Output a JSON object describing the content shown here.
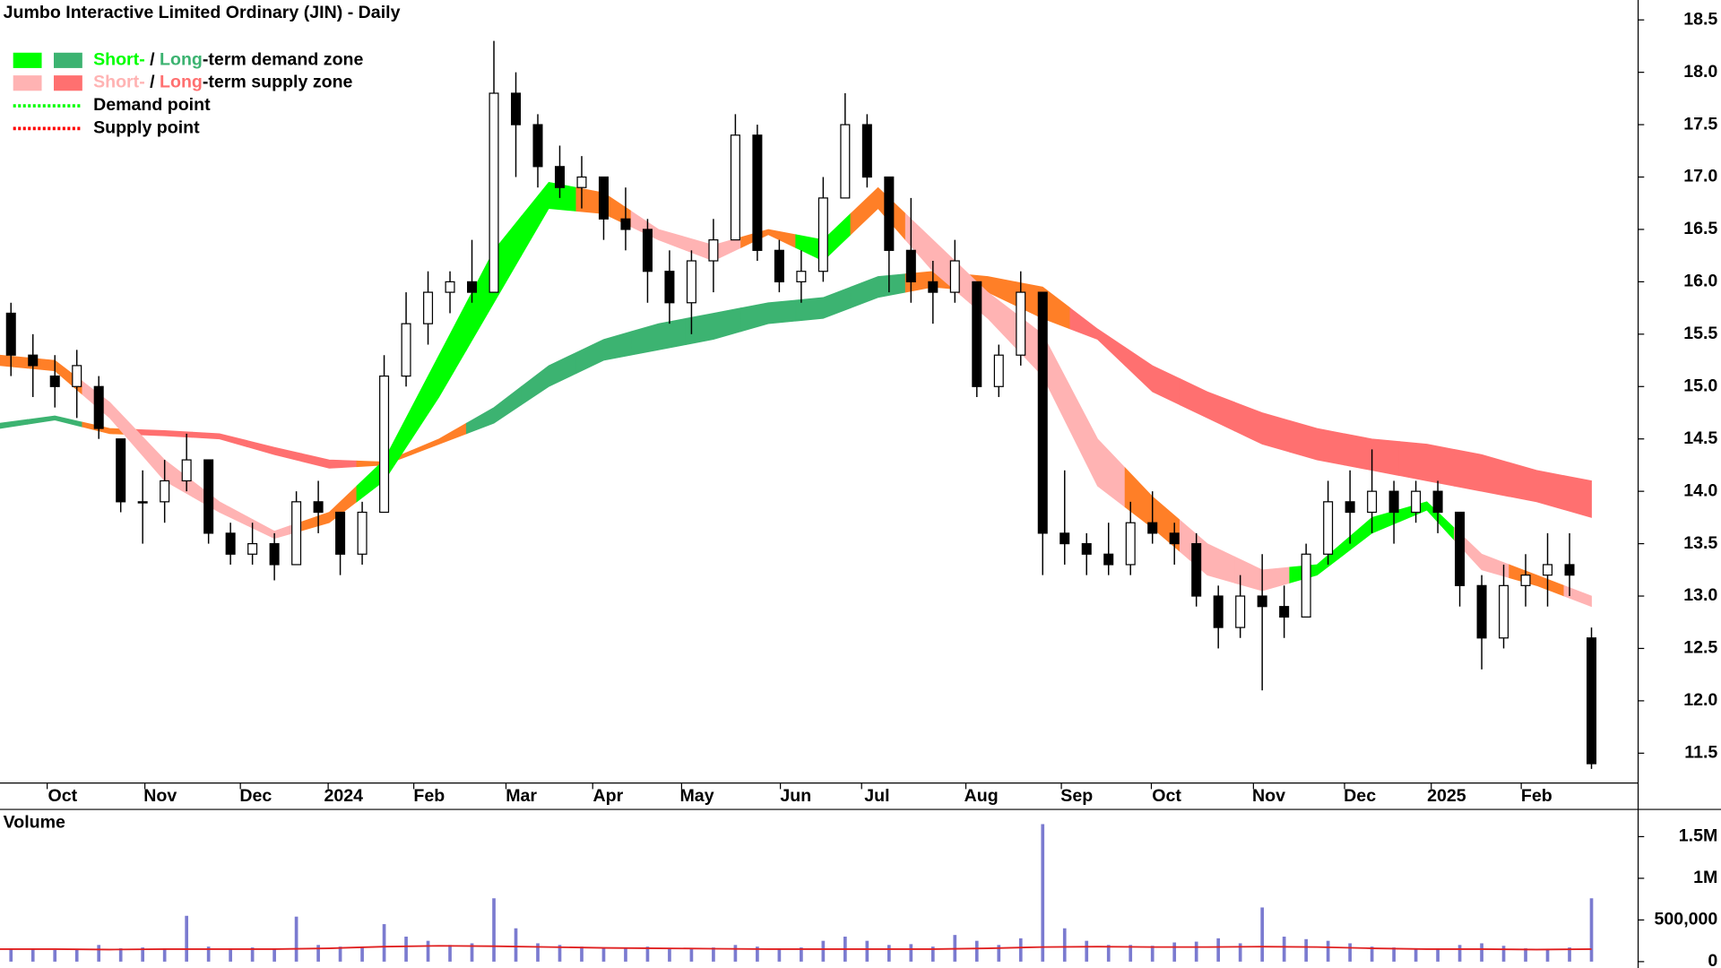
{
  "chart_data": [
    {
      "type": "candlestick",
      "title": "Jumbo Interactive Limited Ordinary (JIN) - Daily",
      "x": [
        0.5,
        1.5,
        2.5,
        3.5,
        4.5,
        5.5,
        6.5,
        7.5,
        8.5,
        9.5,
        10.5,
        11.5,
        12.5,
        13.5,
        14.5,
        15.5,
        16.5,
        17.5,
        18.5,
        19.5,
        20.5,
        21.5,
        22.5,
        23.5,
        24.5,
        25.5,
        26.5,
        27.5,
        28.5,
        29.5,
        30.5,
        31.5,
        32.5,
        33.5,
        34.5,
        35.5,
        36.5,
        37.5,
        38.5,
        39.5,
        40.5,
        41.5,
        42.5,
        43.5,
        44.5,
        45.5,
        46.5,
        47.5,
        48.5,
        49.5,
        50.5,
        51.5,
        52.5,
        53.5,
        54.5,
        55.5,
        56.5,
        57.5,
        58.5,
        59.5,
        60.5,
        61.5,
        62.5,
        63.5,
        64.5,
        65.5,
        66.5,
        67.5,
        68.5,
        69.5,
        70.5,
        71.5,
        72.5
      ],
      "open": [
        15.7,
        15.3,
        15.1,
        15.0,
        15.0,
        14.5,
        13.9,
        13.9,
        14.1,
        14.3,
        13.6,
        13.4,
        13.5,
        13.3,
        13.9,
        13.8,
        13.4,
        13.8,
        15.1,
        15.6,
        15.9,
        16.0,
        15.9,
        17.8,
        17.5,
        17.1,
        16.9,
        17.0,
        16.6,
        16.5,
        16.1,
        15.8,
        16.2,
        16.4,
        17.4,
        16.3,
        16.0,
        16.1,
        16.8,
        17.5,
        17.0,
        16.3,
        16.0,
        15.9,
        16.0,
        15.0,
        15.3,
        15.9,
        13.6,
        13.5,
        13.4,
        13.3,
        13.7,
        13.6,
        13.5,
        13.0,
        12.7,
        13.0,
        12.9,
        12.8,
        13.4,
        13.9,
        13.8,
        14.0,
        13.8,
        14.0,
        13.8,
        13.1,
        12.6,
        13.1,
        13.2,
        13.3,
        12.6
      ],
      "high": [
        15.8,
        15.5,
        15.3,
        15.35,
        15.1,
        14.5,
        14.2,
        14.3,
        14.55,
        14.3,
        13.7,
        13.7,
        13.6,
        14.0,
        14.1,
        13.8,
        13.9,
        15.3,
        15.9,
        16.1,
        16.1,
        16.4,
        18.3,
        18.0,
        17.6,
        17.3,
        17.2,
        17.0,
        16.9,
        16.6,
        16.3,
        16.3,
        16.6,
        17.6,
        17.5,
        16.4,
        16.3,
        17.0,
        17.8,
        17.6,
        17.0,
        16.8,
        16.2,
        16.4,
        16.0,
        15.4,
        16.1,
        15.9,
        14.2,
        13.6,
        13.7,
        13.9,
        14.0,
        13.7,
        13.6,
        13.1,
        13.2,
        13.4,
        13.1,
        13.5,
        14.1,
        14.2,
        14.4,
        14.1,
        14.1,
        14.1,
        13.8,
        13.2,
        13.3,
        13.4,
        13.6,
        13.6,
        12.7
      ],
      "low": [
        15.1,
        14.9,
        14.8,
        14.7,
        14.5,
        13.8,
        13.5,
        13.7,
        14.0,
        13.5,
        13.3,
        13.3,
        13.15,
        13.3,
        13.6,
        13.2,
        13.3,
        13.8,
        15.0,
        15.4,
        15.7,
        15.8,
        15.9,
        17.0,
        16.9,
        16.8,
        16.7,
        16.4,
        16.3,
        15.8,
        15.6,
        15.5,
        15.9,
        16.4,
        16.2,
        15.9,
        15.8,
        16.0,
        16.8,
        16.9,
        15.9,
        15.8,
        15.6,
        15.8,
        14.9,
        14.9,
        15.2,
        13.2,
        13.3,
        13.2,
        13.2,
        13.2,
        13.5,
        13.3,
        12.9,
        12.5,
        12.6,
        12.1,
        12.6,
        12.8,
        13.3,
        13.5,
        13.6,
        13.5,
        13.7,
        13.6,
        12.9,
        12.3,
        12.5,
        12.9,
        12.9,
        13.0,
        11.35
      ],
      "close": [
        15.3,
        15.2,
        15.0,
        15.2,
        14.6,
        13.9,
        13.9,
        14.1,
        14.3,
        13.6,
        13.4,
        13.5,
        13.3,
        13.9,
        13.8,
        13.4,
        13.8,
        15.1,
        15.6,
        15.9,
        16.0,
        15.9,
        17.8,
        17.5,
        17.1,
        16.9,
        17.0,
        16.6,
        16.5,
        16.1,
        15.8,
        16.2,
        16.4,
        17.4,
        16.3,
        16.0,
        16.1,
        16.8,
        17.5,
        17.0,
        16.3,
        16.0,
        15.9,
        16.2,
        15.0,
        15.3,
        15.9,
        13.6,
        13.5,
        13.4,
        13.3,
        13.7,
        13.6,
        13.5,
        13.0,
        12.7,
        13.0,
        12.9,
        12.8,
        13.4,
        13.9,
        13.8,
        14.0,
        13.8,
        14.0,
        13.8,
        13.1,
        12.6,
        13.1,
        13.2,
        13.3,
        13.2,
        11.4
      ],
      "up_color": "#ffffff",
      "down_color": "#000000",
      "zone_x": [
        0,
        2.5,
        5,
        7.5,
        10,
        12.5,
        15,
        17.5,
        20,
        22.5,
        25,
        27.5,
        30,
        32.5,
        35,
        37.5,
        40,
        42.5,
        45,
        47.5,
        50,
        52.5,
        55,
        57.5,
        60,
        62.5,
        65,
        67.5,
        70,
        72.5
      ],
      "zone_colors": {
        "short": {
          "demand": "#00ff00",
          "supply": "#ffb3b3",
          "transition": "#ff7f27"
        },
        "long": {
          "demand": "#3cb371",
          "supply": "#ff7070",
          "transition": "#ff7f27"
        }
      },
      "zones": [
        {
          "band": "long",
          "upper": [
            14.65,
            14.72,
            14.6,
            14.58,
            14.55,
            14.42,
            14.3,
            14.28,
            14.5,
            14.8,
            15.2,
            15.45,
            15.6,
            15.7,
            15.8,
            15.85,
            16.05,
            16.1,
            16.05,
            15.95,
            15.55,
            15.2,
            14.95,
            14.75,
            14.6,
            14.5,
            14.45,
            14.35,
            14.2,
            14.1
          ],
          "lower": [
            14.6,
            14.68,
            14.55,
            14.53,
            14.5,
            14.35,
            14.22,
            14.25,
            14.45,
            14.65,
            15.0,
            15.25,
            15.35,
            15.45,
            15.6,
            15.65,
            15.85,
            15.95,
            15.9,
            15.65,
            15.45,
            14.95,
            14.7,
            14.45,
            14.3,
            14.2,
            14.1,
            14.0,
            13.9,
            13.75
          ],
          "state": [
            "demand",
            "demand",
            "transition",
            "supply",
            "supply",
            "supply",
            "supply",
            "transition",
            "transition",
            "demand",
            "demand",
            "demand",
            "demand",
            "demand",
            "demand",
            "demand",
            "demand",
            "transition",
            "transition",
            "transition",
            "supply",
            "supply",
            "supply",
            "supply",
            "supply",
            "supply",
            "supply",
            "supply",
            "supply",
            "supply"
          ]
        },
        {
          "band": "short",
          "upper": [
            15.3,
            15.25,
            14.85,
            14.3,
            13.9,
            13.62,
            13.8,
            14.3,
            15.3,
            16.3,
            16.95,
            16.85,
            16.5,
            16.35,
            16.5,
            16.4,
            16.9,
            16.4,
            15.9,
            15.5,
            14.5,
            13.95,
            13.5,
            13.25,
            13.3,
            13.75,
            13.9,
            13.4,
            13.2,
            13.0
          ],
          "lower": [
            15.2,
            15.15,
            14.7,
            14.1,
            13.8,
            13.55,
            13.7,
            14.1,
            14.9,
            15.8,
            16.7,
            16.65,
            16.4,
            16.2,
            16.45,
            16.2,
            16.7,
            16.1,
            15.65,
            15.1,
            14.05,
            13.65,
            13.2,
            13.05,
            13.2,
            13.6,
            13.82,
            13.25,
            13.1,
            12.9
          ],
          "state": [
            "transition",
            "transition",
            "supply",
            "supply",
            "supply",
            "supply",
            "transition",
            "demand",
            "demand",
            "demand",
            "demand",
            "transition",
            "supply",
            "supply",
            "transition",
            "demand",
            "transition",
            "supply",
            "supply",
            "supply",
            "supply",
            "transition",
            "supply",
            "supply",
            "demand",
            "demand",
            "demand",
            "supply",
            "transition",
            "supply"
          ]
        }
      ],
      "legend": [
        {
          "swatches": [
            "#00ff00",
            "#3cb371"
          ],
          "parts": [
            {
              "text": "Short-",
              "color": "#00ff00"
            },
            {
              "text": " / ",
              "color": "#000000"
            },
            {
              "text": "Long",
              "color": "#3cb371"
            },
            {
              "text": "-term demand zone",
              "color": "#000000"
            }
          ]
        },
        {
          "swatches": [
            "#ffb3b3",
            "#ff7070"
          ],
          "parts": [
            {
              "text": "Short-",
              "color": "#ffb3b3"
            },
            {
              "text": " / ",
              "color": "#000000"
            },
            {
              "text": "Long",
              "color": "#ff7070"
            },
            {
              "text": "-term supply zone",
              "color": "#000000"
            }
          ]
        },
        {
          "line": "#00ff00",
          "parts": [
            {
              "text": "Demand point",
              "color": "#000000"
            }
          ]
        },
        {
          "line": "#ff0000",
          "parts": [
            {
              "text": "Supply point",
              "color": "#000000"
            }
          ]
        }
      ],
      "xlim": [
        0,
        74.6
      ],
      "xticks": [
        {
          "value": 2.85,
          "label": "Oct"
        },
        {
          "value": 7.3,
          "label": "Nov"
        },
        {
          "value": 11.65,
          "label": "Dec"
        },
        {
          "value": 15.65,
          "label": "2024"
        },
        {
          "value": 19.55,
          "label": "Feb"
        },
        {
          "value": 23.75,
          "label": "Mar"
        },
        {
          "value": 27.7,
          "label": "Apr"
        },
        {
          "value": 31.75,
          "label": "May"
        },
        {
          "value": 36.25,
          "label": "Jun"
        },
        {
          "value": 39.95,
          "label": "Jul"
        },
        {
          "value": 44.7,
          "label": "Aug"
        },
        {
          "value": 49.05,
          "label": "Sep"
        },
        {
          "value": 53.15,
          "label": "Oct"
        },
        {
          "value": 57.8,
          "label": "Nov"
        },
        {
          "value": 61.95,
          "label": "Dec"
        },
        {
          "value": 65.9,
          "label": "2025"
        },
        {
          "value": 70.0,
          "label": "Feb"
        }
      ],
      "ylim": [
        11.22,
        18.69
      ],
      "yticks": [
        11.5,
        {
          "value": 12,
          "label": "12.0"
        },
        12.5,
        {
          "value": 13,
          "label": "13.0"
        },
        13.5,
        {
          "value": 14,
          "label": "14.0"
        },
        14.5,
        {
          "value": 15,
          "label": "15.0"
        },
        15.5,
        {
          "value": 16,
          "label": "16.0"
        },
        16.5,
        {
          "value": 17,
          "label": "17.0"
        },
        17.5,
        {
          "value": 18,
          "label": "18.0"
        },
        18.5
      ]
    },
    {
      "type": "bar",
      "title": "Volume",
      "title_color": "#7777bb",
      "x": [
        0.5,
        1.5,
        2.5,
        3.5,
        4.5,
        5.5,
        6.5,
        7.5,
        8.5,
        9.5,
        10.5,
        11.5,
        12.5,
        13.5,
        14.5,
        15.5,
        16.5,
        17.5,
        18.5,
        19.5,
        20.5,
        21.5,
        22.5,
        23.5,
        24.5,
        25.5,
        26.5,
        27.5,
        28.5,
        29.5,
        30.5,
        31.5,
        32.5,
        33.5,
        34.5,
        35.5,
        36.5,
        37.5,
        38.5,
        39.5,
        40.5,
        41.5,
        42.5,
        43.5,
        44.5,
        45.5,
        46.5,
        47.5,
        48.5,
        49.5,
        50.5,
        51.5,
        52.5,
        53.5,
        54.5,
        55.5,
        56.5,
        57.5,
        58.5,
        59.5,
        60.5,
        61.5,
        62.5,
        63.5,
        64.5,
        65.5,
        66.5,
        67.5,
        68.5,
        69.5,
        70.5,
        71.5,
        72.5
      ],
      "values": [
        150000,
        160000,
        140000,
        150000,
        200000,
        160000,
        170000,
        150000,
        550000,
        180000,
        160000,
        170000,
        150000,
        540000,
        200000,
        180000,
        170000,
        450000,
        300000,
        250000,
        200000,
        220000,
        760000,
        400000,
        220000,
        200000,
        180000,
        170000,
        160000,
        180000,
        150000,
        160000,
        170000,
        200000,
        180000,
        160000,
        170000,
        250000,
        300000,
        250000,
        200000,
        210000,
        180000,
        320000,
        250000,
        200000,
        280000,
        1650000,
        400000,
        250000,
        200000,
        200000,
        190000,
        230000,
        240000,
        280000,
        220000,
        650000,
        300000,
        270000,
        250000,
        220000,
        180000,
        170000,
        160000,
        160000,
        200000,
        220000,
        190000,
        160000,
        150000,
        170000,
        760000
      ],
      "color": "#7b7bd0",
      "ma": {
        "color": "#e02020",
        "x": [
          0,
          2.5,
          5,
          7.5,
          10,
          12.5,
          15,
          17.5,
          20,
          22.5,
          25,
          27.5,
          30,
          32.5,
          35,
          37.5,
          40,
          42.5,
          45,
          47.5,
          50,
          52.5,
          55,
          57.5,
          60,
          62.5,
          65,
          67.5,
          70,
          72.5
        ],
        "values": [
          150000,
          150000,
          145000,
          150000,
          150000,
          150000,
          160000,
          180000,
          190000,
          185000,
          175000,
          165000,
          160000,
          155000,
          150000,
          150000,
          150000,
          150000,
          160000,
          175000,
          180000,
          175000,
          175000,
          180000,
          175000,
          160000,
          150000,
          150000,
          145000,
          150000
        ]
      },
      "xlim": [
        0,
        74.6
      ],
      "ylim": [
        -50000,
        1820000
      ],
      "yticks": [
        0,
        {
          "value": 500000,
          "label": "500,000"
        },
        {
          "value": 1000000,
          "label": "1M"
        },
        {
          "value": 1500000,
          "label": "1.5M"
        }
      ]
    }
  ]
}
